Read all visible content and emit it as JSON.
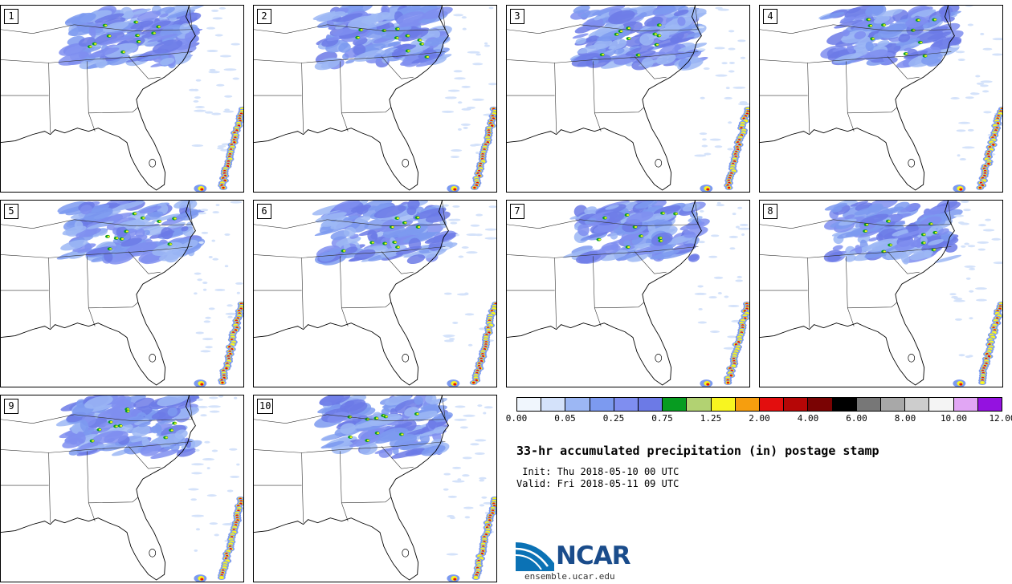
{
  "panels": [
    {
      "label": "1"
    },
    {
      "label": "2"
    },
    {
      "label": "3"
    },
    {
      "label": "4"
    },
    {
      "label": "5"
    },
    {
      "label": "6"
    },
    {
      "label": "7"
    },
    {
      "label": "8"
    },
    {
      "label": "9"
    },
    {
      "label": "10"
    }
  ],
  "colorbar": {
    "colors": [
      "#f0f6fd",
      "#d4e2fa",
      "#9cb7f4",
      "#7c9af0",
      "#7f8ef0",
      "#6c7ae6",
      "#079c21",
      "#b2d272",
      "#f8f520",
      "#f69e0e",
      "#e30e0e",
      "#b60606",
      "#7a0303",
      "#000000",
      "#777777",
      "#a8a8a8",
      "#cdcdcd",
      "#f4f4f4",
      "#e1a6f4",
      "#9412e0"
    ],
    "ticks": [
      "0.00",
      "0.05",
      "0.25",
      "0.75",
      "1.25",
      "2.00",
      "4.00",
      "6.00",
      "8.00",
      "10.00",
      "12.00"
    ]
  },
  "title": "33-hr accumulated precipitation (in) postage stamp",
  "init": " Init: Thu 2018-05-10 00 UTC",
  "valid": "Valid: Fri 2018-05-11 09 UTC",
  "logo": {
    "text": "NCAR",
    "site": "ensemble.ucar.edu",
    "color": "#1a4c8b"
  }
}
